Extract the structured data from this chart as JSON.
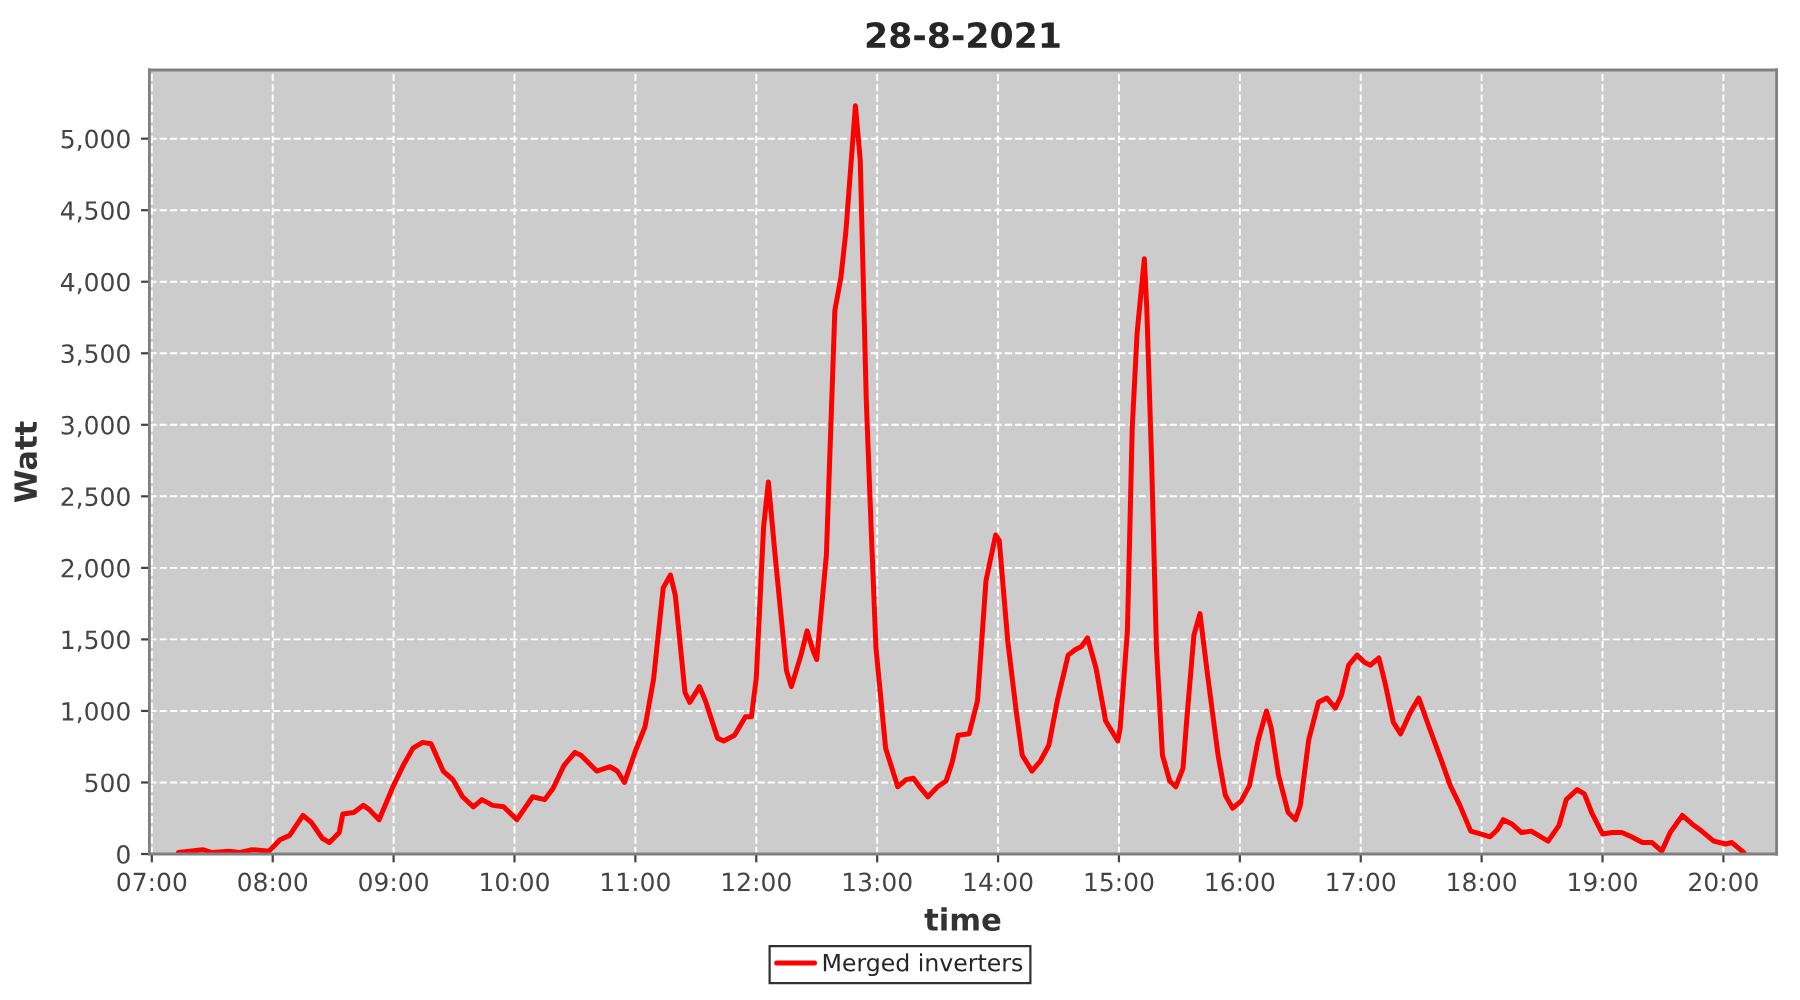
{
  "chart_data": {
    "type": "line",
    "title": "28-8-2021",
    "xlabel": "time",
    "ylabel": "Watt",
    "xlim": [
      6.98,
      20.44
    ],
    "xticks": [
      {
        "value": 7,
        "label": "07:00"
      },
      {
        "value": 8,
        "label": "08:00"
      },
      {
        "value": 9,
        "label": "09:00"
      },
      {
        "value": 10,
        "label": "10:00"
      },
      {
        "value": 11,
        "label": "11:00"
      },
      {
        "value": 12,
        "label": "12:00"
      },
      {
        "value": 13,
        "label": "13:00"
      },
      {
        "value": 14,
        "label": "14:00"
      },
      {
        "value": 15,
        "label": "15:00"
      },
      {
        "value": 16,
        "label": "16:00"
      },
      {
        "value": 17,
        "label": "17:00"
      },
      {
        "value": 18,
        "label": "18:00"
      },
      {
        "value": 19,
        "label": "19:00"
      },
      {
        "value": 20,
        "label": "20:00"
      }
    ],
    "ylim": [
      0,
      5480
    ],
    "yticks": [
      0,
      500,
      {
        "value": 1000,
        "label": "1,000"
      },
      {
        "value": 1500,
        "label": "1,500"
      },
      {
        "value": 2000,
        "label": "2,000"
      },
      {
        "value": 2500,
        "label": "2,500"
      },
      {
        "value": 3000,
        "label": "3,000"
      },
      {
        "value": 3500,
        "label": "3,500"
      },
      {
        "value": 4000,
        "label": "4,000"
      },
      {
        "value": 4500,
        "label": "4,500"
      },
      {
        "value": 5000,
        "label": "5,000"
      }
    ],
    "grid": true,
    "legend": "bottom",
    "line_style": "solid",
    "series": [
      {
        "name": "Merged inverters",
        "color": "#ff0000",
        "x": [
          7.22,
          7.42,
          7.5,
          7.64,
          7.72,
          7.83,
          7.97,
          8.06,
          8.14,
          8.25,
          8.32,
          8.41,
          8.47,
          8.55,
          8.58,
          8.67,
          8.75,
          8.8,
          8.88,
          9.0,
          9.08,
          9.16,
          9.24,
          9.31,
          9.41,
          9.49,
          9.57,
          9.66,
          9.73,
          9.82,
          9.91,
          10.02,
          10.15,
          10.25,
          10.32,
          10.41,
          10.5,
          10.55,
          10.68,
          10.79,
          10.85,
          10.91,
          11.0,
          11.08,
          11.15,
          11.23,
          11.29,
          11.33,
          11.41,
          11.45,
          11.53,
          11.58,
          11.68,
          11.73,
          11.82,
          11.91,
          11.96,
          12.0,
          12.06,
          12.1,
          12.16,
          12.25,
          12.29,
          12.37,
          12.42,
          12.47,
          12.5,
          12.58,
          12.65,
          12.7,
          12.74,
          12.82,
          12.86,
          12.91,
          12.95,
          12.99,
          13.07,
          13.17,
          13.24,
          13.3,
          13.36,
          13.42,
          13.5,
          13.57,
          13.62,
          13.67,
          13.76,
          13.83,
          13.9,
          13.98,
          14.01,
          14.08,
          14.15,
          14.2,
          14.28,
          14.35,
          14.42,
          14.49,
          14.58,
          14.64,
          14.69,
          14.74,
          14.81,
          14.89,
          14.99,
          15.01,
          15.07,
          15.11,
          15.15,
          15.21,
          15.23,
          15.27,
          15.31,
          15.36,
          15.42,
          15.47,
          15.53,
          15.56,
          15.62,
          15.67,
          15.73,
          15.82,
          15.88,
          15.94,
          16.01,
          16.08,
          16.15,
          16.22,
          16.26,
          16.32,
          16.4,
          16.46,
          16.5,
          16.57,
          16.65,
          16.72,
          16.79,
          16.84,
          16.9,
          16.97,
          17.03,
          17.08,
          17.15,
          17.2,
          17.27,
          17.33,
          17.41,
          17.48,
          17.56,
          17.66,
          17.74,
          17.82,
          17.91,
          17.99,
          18.07,
          18.13,
          18.18,
          18.25,
          18.33,
          18.41,
          18.47,
          18.55,
          18.64,
          18.7,
          18.79,
          18.85,
          18.91,
          19.0,
          19.08,
          19.16,
          19.24,
          19.33,
          19.41,
          19.49,
          19.56,
          19.66,
          19.74,
          19.82,
          19.92,
          20.02,
          20.07,
          20.17
        ],
        "values": [
          10,
          30,
          10,
          20,
          10,
          30,
          20,
          100,
          130,
          270,
          220,
          110,
          80,
          150,
          280,
          290,
          340,
          310,
          240,
          480,
          620,
          740,
          780,
          770,
          580,
          520,
          400,
          330,
          380,
          340,
          330,
          240,
          400,
          380,
          460,
          620,
          710,
          690,
          580,
          610,
          580,
          500,
          720,
          890,
          1220,
          1860,
          1950,
          1810,
          1130,
          1060,
          1170,
          1070,
          810,
          790,
          830,
          960,
          960,
          1230,
          2280,
          2600,
          2050,
          1280,
          1170,
          1390,
          1560,
          1420,
          1360,
          2090,
          3800,
          4030,
          4340,
          5230,
          4850,
          3170,
          2280,
          1440,
          740,
          470,
          520,
          530,
          460,
          400,
          470,
          510,
          640,
          830,
          840,
          1070,
          1910,
          2230,
          2190,
          1490,
          1000,
          690,
          580,
          650,
          760,
          1070,
          1390,
          1430,
          1450,
          1510,
          1300,
          930,
          790,
          880,
          1560,
          2980,
          3640,
          4160,
          3820,
          2750,
          1440,
          690,
          510,
          470,
          600,
          930,
          1530,
          1680,
          1270,
          690,
          410,
          320,
          370,
          480,
          790,
          1000,
          880,
          550,
          290,
          240,
          340,
          800,
          1060,
          1090,
          1020,
          1110,
          1320,
          1390,
          1340,
          1320,
          1370,
          1200,
          920,
          840,
          990,
          1090,
          900,
          670,
          480,
          340,
          160,
          140,
          120,
          170,
          240,
          210,
          150,
          160,
          130,
          90,
          200,
          380,
          450,
          420,
          290,
          140,
          150,
          150,
          120,
          80,
          80,
          20,
          150,
          270,
          210,
          160,
          90,
          70,
          80,
          10
        ]
      }
    ]
  }
}
